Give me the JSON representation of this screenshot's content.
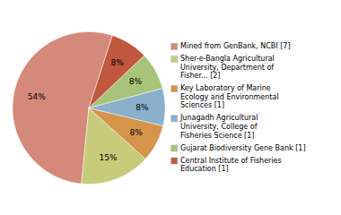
{
  "chart_data": {
    "type": "pie",
    "categories": [
      "Mined from GenBank, NCBI [7]",
      "Sher-e-Bangla Agricultural\nUniversity, Department of\nFisher... [2]",
      "Key Laboratory of Marine\nEcology and Environmental\nSciences [1]",
      "Junagadh Agricultural\nUniversity, College of\nFisheries Science [1]",
      "Gujarat Biodiversity Gene Bank [1]",
      "Central Institute of Fisheries\nEducation [1]"
    ],
    "values": [
      54,
      15,
      8,
      8,
      8,
      8
    ],
    "value_labels": [
      "54%",
      "15%",
      "8%",
      "8%",
      "8%",
      "8%"
    ],
    "colors": [
      "#d4897a",
      "#c8cc7a",
      "#d4944a",
      "#8ab0cc",
      "#a8c47a",
      "#c05840"
    ],
    "data_labels": true,
    "legend": "right"
  }
}
